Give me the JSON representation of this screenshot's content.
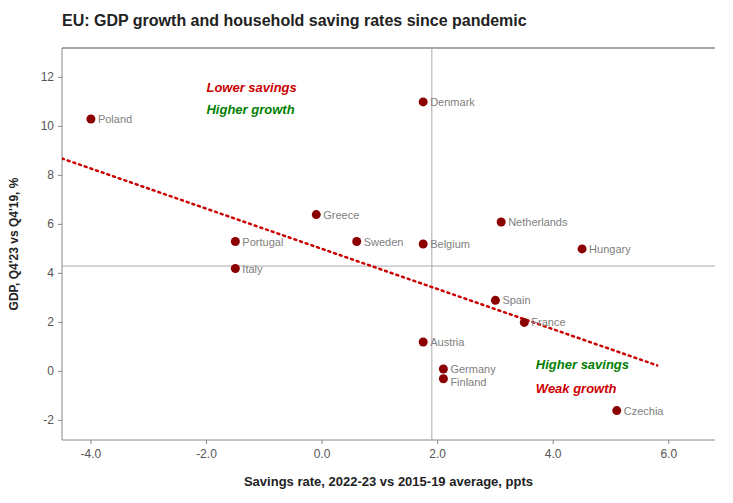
{
  "chart_data": {
    "type": "scatter",
    "title": "EU: GDP growth and household saving rates since pandemic",
    "xlabel": "Savings rate, 2022-23 vs 2015-19 average, ppts",
    "ylabel": "GDP, Q4'23 vs Q4'19, %",
    "labels": [
      "Poland",
      "Denmark",
      "Greece",
      "Sweden",
      "Portugal",
      "Belgium",
      "Netherlands",
      "Hungary",
      "Italy",
      "Spain",
      "France",
      "Austria",
      "Germany",
      "Finland",
      "Czechia"
    ],
    "x": [
      -4.0,
      1.75,
      -0.1,
      0.6,
      -1.5,
      1.75,
      3.1,
      4.5,
      -1.5,
      3.0,
      3.5,
      1.75,
      2.1,
      2.1,
      5.1
    ],
    "values": [
      10.3,
      11.0,
      6.4,
      5.3,
      5.3,
      5.2,
      6.1,
      5.0,
      4.2,
      2.9,
      2.0,
      1.2,
      0.1,
      -0.3,
      -1.6
    ],
    "color": "#8B0000",
    "vline": 1.9,
    "hline": 4.3,
    "regression": {
      "x": [
        -4.5,
        5.8
      ],
      "values": [
        8.69,
        0.244
      ],
      "color": "#cc0000",
      "line_style": "dotted"
    },
    "annotations": [
      {
        "text": "Lower savings",
        "x": -2.0,
        "y": 11.8,
        "color": "#cc0000"
      },
      {
        "text": "Higher growth",
        "x": -2.0,
        "y": 10.9,
        "color": "green"
      },
      {
        "text": "Higher savings",
        "x": 3.7,
        "y": 0.5,
        "color": "green"
      },
      {
        "text": "Weak growth",
        "x": 3.7,
        "y": -0.5,
        "color": "#cc0000"
      }
    ],
    "xlim": [
      -4.5,
      6.8
    ],
    "ylim": [
      -2.8,
      13.2
    ],
    "xticks": [
      {
        "value": -4.0,
        "label": "-4.0"
      },
      {
        "value": -2.0,
        "label": "-2.0"
      },
      {
        "value": 0.0,
        "label": "0.0"
      },
      {
        "value": 2.0,
        "label": "2.0"
      },
      {
        "value": 4.0,
        "label": "4.0"
      },
      {
        "value": 6.0,
        "label": "6.0"
      }
    ],
    "yticks": [
      -2,
      0,
      2,
      4,
      6,
      8,
      10,
      12
    ],
    "grid": false
  }
}
